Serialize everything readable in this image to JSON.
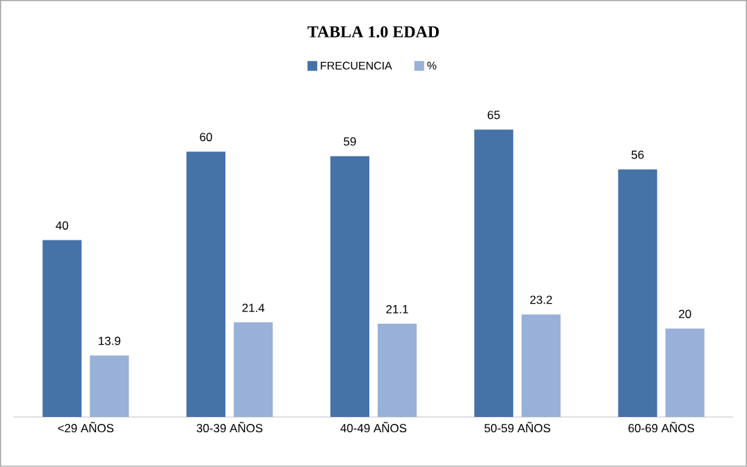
{
  "chart_data": {
    "type": "bar",
    "title": "**TABLA 1.0 EDAD**",
    "categories": [
      "<29 AÑOS",
      "30-39 AÑOS",
      "40-49 AÑOS",
      "50-59 AÑOS",
      "60-69 AÑOS"
    ],
    "series": [
      {
        "name": "FRECUENCIA",
        "color": "#4572a7",
        "values": [
          40,
          60,
          59,
          65,
          56
        ]
      },
      {
        "name": "%",
        "color": "#99b0d8",
        "values": [
          13.9,
          21.4,
          21.1,
          23.2,
          20
        ]
      }
    ],
    "data_labels": true,
    "legend": "top"
  }
}
